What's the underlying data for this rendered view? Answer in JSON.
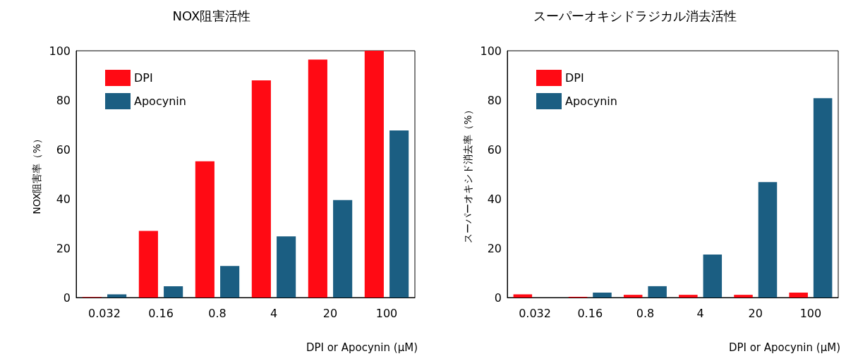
{
  "chart_data": [
    {
      "type": "bar",
      "title": "NOX阻害活性",
      "xlabel": "DPI or Apocynin (μM)",
      "ylabel": "NOX阻害率（%）",
      "categories": [
        "0.032",
        "0.16",
        "0.8",
        "4",
        "20",
        "100"
      ],
      "series": [
        {
          "name": "DPI",
          "color": "#ff0a14",
          "values": [
            0.2,
            27,
            55.2,
            88,
            96.4,
            100
          ]
        },
        {
          "name": "Apocynin",
          "color": "#1b5e82",
          "values": [
            1.3,
            4.6,
            12.8,
            24.8,
            39.5,
            67.7
          ]
        }
      ],
      "ylim": [
        0,
        100
      ],
      "yticks": [
        0,
        20,
        40,
        60,
        80,
        100
      ],
      "grid": false,
      "legend": "top left"
    },
    {
      "type": "bar",
      "title": "スーパーオキシドラジカル消去活性",
      "xlabel": "DPI or Apocynin (μM)",
      "ylabel": "スーパーオキシド消去率（%）",
      "categories": [
        "0.032",
        "0.16",
        "0.8",
        "4",
        "20",
        "100"
      ],
      "series": [
        {
          "name": "DPI",
          "color": "#ff0a14",
          "values": [
            1.3,
            0.3,
            1.1,
            1.1,
            1.1,
            2
          ]
        },
        {
          "name": "Apocynin",
          "color": "#1b5e82",
          "values": [
            0,
            2,
            4.6,
            17.4,
            46.8,
            80.8
          ]
        }
      ],
      "ylim": [
        0,
        100
      ],
      "yticks": [
        0,
        20,
        40,
        60,
        80,
        100
      ],
      "grid": false,
      "legend": "top left"
    }
  ]
}
